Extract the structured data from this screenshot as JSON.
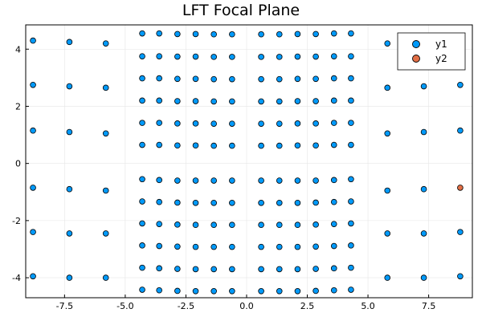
{
  "chart_data": {
    "type": "scatter",
    "title": "LFT Focal Plane",
    "xlabel": "",
    "ylabel": "",
    "xlim": [
      -9.1,
      9.3
    ],
    "ylim": [
      -4.7,
      4.85
    ],
    "xticks": [
      -7.5,
      -5.0,
      -2.5,
      0.0,
      2.5,
      5.0,
      7.5
    ],
    "xtick_labels": [
      "-7.5",
      "-5.0",
      "-2.5",
      "0.0",
      "2.5",
      "5.0",
      "7.5"
    ],
    "yticks": [
      -4,
      -2,
      0,
      2,
      4
    ],
    "ytick_labels": [
      "-4",
      "-2",
      "0",
      "2",
      "4"
    ],
    "grid": true,
    "legend_position": "top-right",
    "colors": {
      "y1": "#009AFA",
      "y2": "#E26F46"
    },
    "series": [
      {
        "name": "y1",
        "points": [
          [
            -8.8,
            4.3
          ],
          [
            -7.3,
            4.25
          ],
          [
            -5.8,
            4.2
          ],
          [
            5.8,
            4.2
          ],
          [
            7.3,
            4.25
          ],
          [
            8.8,
            4.3
          ],
          [
            -8.8,
            2.75
          ],
          [
            -7.3,
            2.7
          ],
          [
            -5.8,
            2.65
          ],
          [
            5.8,
            2.65
          ],
          [
            7.3,
            2.7
          ],
          [
            8.8,
            2.75
          ],
          [
            -8.8,
            1.15
          ],
          [
            -7.3,
            1.1
          ],
          [
            -5.8,
            1.05
          ],
          [
            5.8,
            1.05
          ],
          [
            7.3,
            1.1
          ],
          [
            8.8,
            1.15
          ],
          [
            -8.8,
            -0.85
          ],
          [
            -7.3,
            -0.9
          ],
          [
            -5.8,
            -0.95
          ],
          [
            5.8,
            -0.95
          ],
          [
            7.3,
            -0.9
          ],
          [
            -8.8,
            -2.4
          ],
          [
            -7.3,
            -2.45
          ],
          [
            -5.8,
            -2.45
          ],
          [
            5.8,
            -2.45
          ],
          [
            7.3,
            -2.45
          ],
          [
            8.8,
            -2.4
          ],
          [
            -8.8,
            -3.95
          ],
          [
            -7.3,
            -4.0
          ],
          [
            -5.8,
            -4.0
          ],
          [
            5.8,
            -4.0
          ],
          [
            7.3,
            -4.0
          ],
          [
            8.8,
            -3.95
          ],
          [
            -4.3,
            4.55
          ],
          [
            -3.6,
            4.55
          ],
          [
            -2.85,
            4.53
          ],
          [
            -2.1,
            4.53
          ],
          [
            -1.35,
            4.52
          ],
          [
            -0.6,
            4.52
          ],
          [
            0.6,
            4.52
          ],
          [
            1.35,
            4.52
          ],
          [
            2.1,
            4.53
          ],
          [
            2.85,
            4.53
          ],
          [
            3.6,
            4.55
          ],
          [
            4.3,
            4.55
          ],
          [
            -4.3,
            3.75
          ],
          [
            -3.6,
            3.75
          ],
          [
            -2.85,
            3.74
          ],
          [
            -2.1,
            3.74
          ],
          [
            -1.35,
            3.73
          ],
          [
            -0.6,
            3.73
          ],
          [
            0.6,
            3.73
          ],
          [
            1.35,
            3.73
          ],
          [
            2.1,
            3.74
          ],
          [
            2.85,
            3.74
          ],
          [
            3.6,
            3.75
          ],
          [
            4.3,
            3.75
          ],
          [
            -4.3,
            2.98
          ],
          [
            -3.6,
            2.98
          ],
          [
            -2.85,
            2.96
          ],
          [
            -2.1,
            2.96
          ],
          [
            -1.35,
            2.95
          ],
          [
            -0.6,
            2.95
          ],
          [
            0.6,
            2.95
          ],
          [
            1.35,
            2.95
          ],
          [
            2.1,
            2.96
          ],
          [
            2.85,
            2.96
          ],
          [
            3.6,
            2.98
          ],
          [
            4.3,
            2.98
          ],
          [
            -4.3,
            2.2
          ],
          [
            -3.6,
            2.2
          ],
          [
            -2.85,
            2.18
          ],
          [
            -2.1,
            2.18
          ],
          [
            -1.35,
            2.17
          ],
          [
            -0.6,
            2.17
          ],
          [
            0.6,
            2.17
          ],
          [
            1.35,
            2.17
          ],
          [
            2.1,
            2.18
          ],
          [
            2.85,
            2.18
          ],
          [
            3.6,
            2.2
          ],
          [
            4.3,
            2.2
          ],
          [
            -4.3,
            1.42
          ],
          [
            -3.6,
            1.42
          ],
          [
            -2.85,
            1.4
          ],
          [
            -2.1,
            1.4
          ],
          [
            -1.35,
            1.39
          ],
          [
            -0.6,
            1.39
          ],
          [
            0.6,
            1.39
          ],
          [
            1.35,
            1.39
          ],
          [
            2.1,
            1.4
          ],
          [
            2.85,
            1.4
          ],
          [
            3.6,
            1.42
          ],
          [
            4.3,
            1.42
          ],
          [
            -4.3,
            0.65
          ],
          [
            -3.6,
            0.65
          ],
          [
            -2.85,
            0.63
          ],
          [
            -2.1,
            0.63
          ],
          [
            -1.35,
            0.62
          ],
          [
            -0.6,
            0.62
          ],
          [
            0.6,
            0.62
          ],
          [
            1.35,
            0.62
          ],
          [
            2.1,
            0.63
          ],
          [
            2.85,
            0.63
          ],
          [
            3.6,
            0.65
          ],
          [
            4.3,
            0.65
          ],
          [
            -4.3,
            -0.55
          ],
          [
            -3.6,
            -0.58
          ],
          [
            -2.85,
            -0.6
          ],
          [
            -2.1,
            -0.6
          ],
          [
            -1.35,
            -0.6
          ],
          [
            -0.6,
            -0.6
          ],
          [
            0.6,
            -0.6
          ],
          [
            1.35,
            -0.6
          ],
          [
            2.1,
            -0.6
          ],
          [
            2.85,
            -0.6
          ],
          [
            3.6,
            -0.58
          ],
          [
            4.3,
            -0.55
          ],
          [
            -4.3,
            -1.33
          ],
          [
            -3.6,
            -1.35
          ],
          [
            -2.85,
            -1.37
          ],
          [
            -2.1,
            -1.38
          ],
          [
            -1.35,
            -1.38
          ],
          [
            -0.6,
            -1.38
          ],
          [
            0.6,
            -1.38
          ],
          [
            1.35,
            -1.38
          ],
          [
            2.1,
            -1.38
          ],
          [
            2.85,
            -1.37
          ],
          [
            3.6,
            -1.35
          ],
          [
            4.3,
            -1.33
          ],
          [
            -4.3,
            -2.1
          ],
          [
            -3.6,
            -2.12
          ],
          [
            -2.85,
            -2.14
          ],
          [
            -2.1,
            -2.15
          ],
          [
            -1.35,
            -2.15
          ],
          [
            -0.6,
            -2.15
          ],
          [
            0.6,
            -2.15
          ],
          [
            1.35,
            -2.15
          ],
          [
            2.1,
            -2.15
          ],
          [
            2.85,
            -2.14
          ],
          [
            3.6,
            -2.12
          ],
          [
            4.3,
            -2.1
          ],
          [
            -4.3,
            -2.87
          ],
          [
            -3.6,
            -2.89
          ],
          [
            -2.85,
            -2.91
          ],
          [
            -2.1,
            -2.92
          ],
          [
            -1.35,
            -2.92
          ],
          [
            -0.6,
            -2.92
          ],
          [
            0.6,
            -2.92
          ],
          [
            1.35,
            -2.92
          ],
          [
            2.1,
            -2.92
          ],
          [
            2.85,
            -2.91
          ],
          [
            3.6,
            -2.89
          ],
          [
            4.3,
            -2.87
          ],
          [
            -4.3,
            -3.65
          ],
          [
            -3.6,
            -3.67
          ],
          [
            -2.85,
            -3.69
          ],
          [
            -2.1,
            -3.7
          ],
          [
            -1.35,
            -3.7
          ],
          [
            -0.6,
            -3.7
          ],
          [
            0.6,
            -3.7
          ],
          [
            1.35,
            -3.7
          ],
          [
            2.1,
            -3.7
          ],
          [
            2.85,
            -3.69
          ],
          [
            3.6,
            -3.67
          ],
          [
            4.3,
            -3.65
          ],
          [
            -4.3,
            -4.42
          ],
          [
            -3.6,
            -4.44
          ],
          [
            -2.85,
            -4.46
          ],
          [
            -2.1,
            -4.47
          ],
          [
            -1.35,
            -4.47
          ],
          [
            -0.6,
            -4.47
          ],
          [
            0.6,
            -4.47
          ],
          [
            1.35,
            -4.47
          ],
          [
            2.1,
            -4.47
          ],
          [
            2.85,
            -4.46
          ],
          [
            3.6,
            -4.44
          ],
          [
            4.3,
            -4.42
          ]
        ]
      },
      {
        "name": "y2",
        "points": [
          [
            8.8,
            -0.85
          ]
        ]
      }
    ]
  }
}
